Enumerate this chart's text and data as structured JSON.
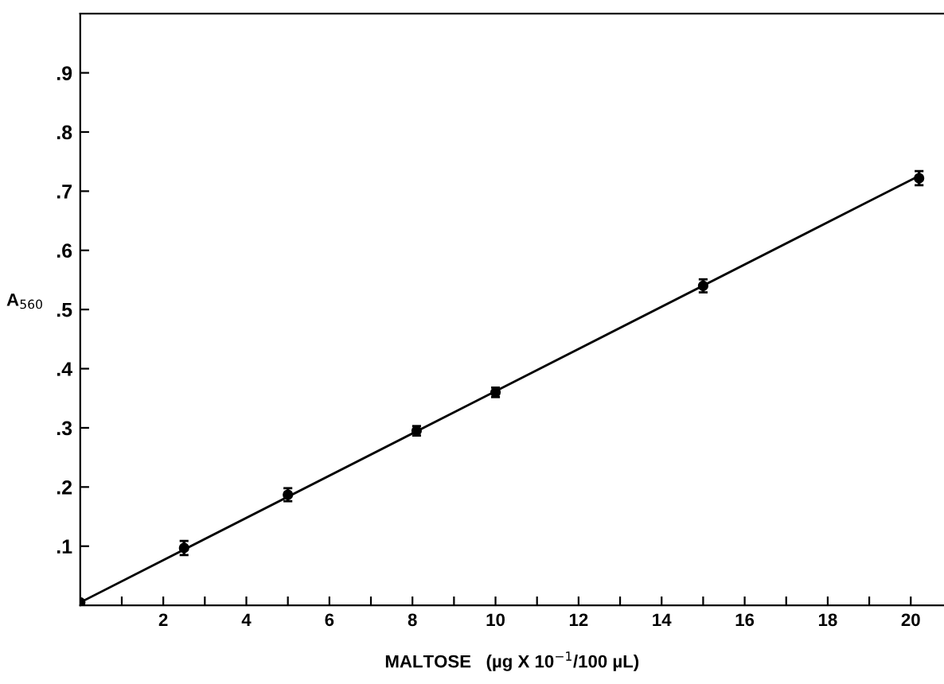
{
  "chart_data": {
    "type": "scatter",
    "xlabel": "MALTOSE   (µg X 10$^{−1}$/100 µL)",
    "ylabel": "A$_{560}$",
    "series": [
      {
        "marker": "circle",
        "color": "#000000",
        "x": [
          0,
          2.5,
          5,
          8.1,
          10,
          15,
          20.2
        ],
        "values": [
          0.005,
          0.097,
          0.187,
          0.295,
          0.36,
          0.54,
          0.722
        ],
        "errors": [
          null,
          0.012,
          0.011,
          0.008,
          0.008,
          0.011,
          0.012
        ]
      },
      {
        "type": "line",
        "marker": "none",
        "color": "#000000",
        "x": [
          0,
          20.2
        ],
        "values": [
          0.005,
          0.726
        ]
      }
    ],
    "line_style": "solid",
    "grid": false,
    "legend": false,
    "xlim": [
      0,
      20.8
    ],
    "ylim": [
      0,
      1.0
    ],
    "xticks": [
      {
        "value": 1,
        "label": null
      },
      2,
      {
        "value": 3,
        "label": null
      },
      4,
      {
        "value": 5,
        "label": null
      },
      6,
      {
        "value": 7,
        "label": null
      },
      8,
      {
        "value": 9,
        "label": null
      },
      10,
      {
        "value": 11,
        "label": null
      },
      12,
      {
        "value": 13,
        "label": null
      },
      14,
      {
        "value": 15,
        "label": null
      },
      16,
      {
        "value": 17,
        "label": null
      },
      18,
      {
        "value": 19,
        "label": null
      },
      20
    ],
    "yticks": [
      {
        "value": 0.1,
        "label": ".1"
      },
      {
        "value": 0.2,
        "label": ".2"
      },
      {
        "value": 0.3,
        "label": ".3"
      },
      {
        "value": 0.4,
        "label": ".4"
      },
      {
        "value": 0.5,
        "label": ".5"
      },
      {
        "value": 0.6,
        "label": ".6"
      },
      {
        "value": 0.7,
        "label": ".7"
      },
      {
        "value": 0.8,
        "label": ".8"
      },
      {
        "value": 0.9,
        "label": ".9"
      }
    ]
  }
}
